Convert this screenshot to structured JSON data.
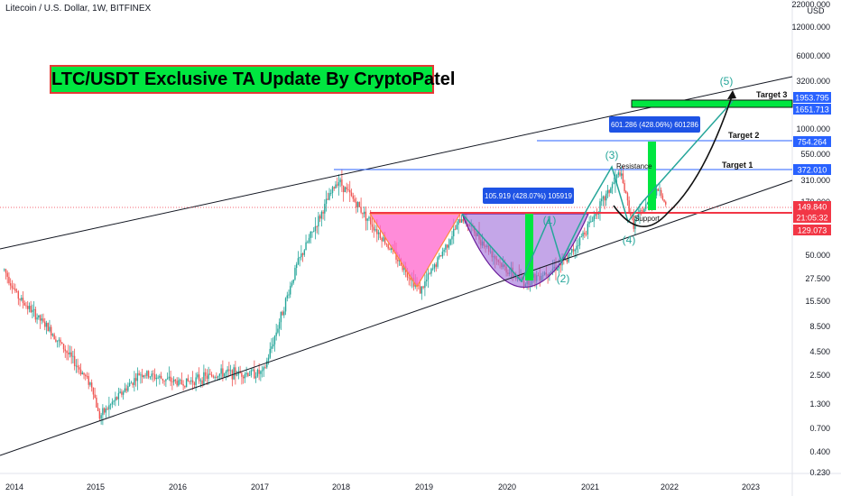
{
  "header": {
    "symbol_title": "Litecoin / U.S. Dollar, 1W, BITFINEX"
  },
  "banner": {
    "text": "LTC/USDT Exclusive TA Update By CryptoPatel"
  },
  "chart_data": {
    "type": "candlestick",
    "scale": "log",
    "currency_label": "USD",
    "x_ticks": [
      "2014",
      "2015",
      "2016",
      "2017",
      "2018",
      "2019",
      "2020",
      "2021",
      "2022",
      "2023"
    ],
    "y_ticks": [
      "22000.000",
      "12000.000",
      "6000.000",
      "3200.000",
      "1000.000",
      "550.000",
      "310.000",
      "170.000",
      "50.000",
      "27.500",
      "15.500",
      "8.500",
      "4.500",
      "2.500",
      "1.300",
      "0.700",
      "0.400",
      "0.230"
    ],
    "series_approx_close": [
      {
        "date": "2013-11",
        "price": 40
      },
      {
        "date": "2014-01",
        "price": 22
      },
      {
        "date": "2014-06",
        "price": 10
      },
      {
        "date": "2014-12",
        "price": 3
      },
      {
        "date": "2015-01",
        "price": 1.5
      },
      {
        "date": "2015-07",
        "price": 4
      },
      {
        "date": "2016-01",
        "price": 3.2
      },
      {
        "date": "2016-07",
        "price": 4
      },
      {
        "date": "2017-01",
        "price": 4
      },
      {
        "date": "2017-06",
        "price": 45
      },
      {
        "date": "2017-12",
        "price": 300
      },
      {
        "date": "2018-06",
        "price": 90
      },
      {
        "date": "2018-12",
        "price": 25
      },
      {
        "date": "2019-06",
        "price": 130
      },
      {
        "date": "2019-12",
        "price": 42
      },
      {
        "date": "2020-03",
        "price": 30
      },
      {
        "date": "2020-09",
        "price": 48
      },
      {
        "date": "2021-05",
        "price": 350
      },
      {
        "date": "2021-07",
        "price": 110
      },
      {
        "date": "2021-11",
        "price": 250
      },
      {
        "date": "2021-12",
        "price": 150
      }
    ],
    "price_labels": [
      {
        "value": "1953.795",
        "color": "#2962ff"
      },
      {
        "value": "1651.713",
        "color": "#2962ff"
      },
      {
        "value": "754.264",
        "color": "#2962ff"
      },
      {
        "value": "372.010",
        "color": "#2962ff"
      },
      {
        "value": "149.840",
        "color": "#f23645"
      },
      {
        "value": "21:05:32",
        "color": "#f23645"
      },
      {
        "value": "129.073",
        "color": "#f23645"
      }
    ],
    "annotations": {
      "targets": [
        "Target 1",
        "Target 2",
        "Target 3"
      ],
      "resistance": "Resistance",
      "support": "Support",
      "waves": [
        "(1)",
        "(2)",
        "(3)",
        "(4)",
        "(5)"
      ],
      "measure_1": "105.919 (428.07%) 105919",
      "measure_2": "601.286 (428.06%) 601286"
    },
    "colors": {
      "up": "#26a69a",
      "down": "#ef5350",
      "wave": "#26a69a",
      "trendline": "#131722",
      "level": "#2962ff",
      "green_bar": "#00e640",
      "head_shoulder_fill": "#ff66cc",
      "cup_fill": "#9c6ad8"
    }
  }
}
